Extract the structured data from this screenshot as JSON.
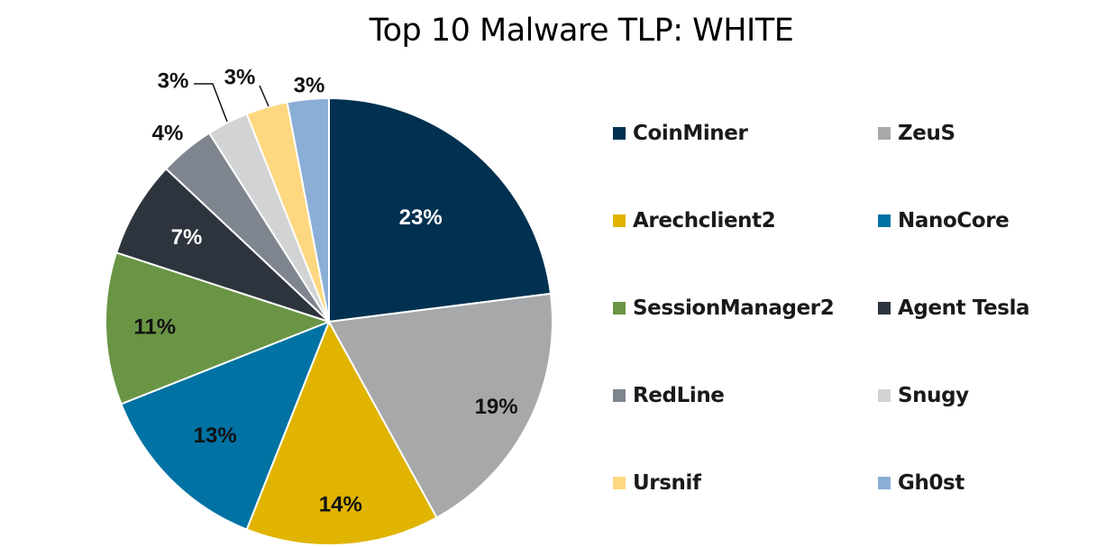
{
  "chart_data": {
    "type": "pie",
    "title": "Top 10 Malware TLP: WHITE",
    "categories": [
      "CoinMiner",
      "ZeuS",
      "Arechclient2",
      "NanoCore",
      "SessionManager2",
      "Agent Tesla",
      "RedLine",
      "Snugy",
      "Ursnif",
      "Gh0st"
    ],
    "values": [
      23,
      19,
      14,
      13,
      11,
      7,
      4,
      3,
      3,
      3
    ],
    "labels": [
      "23%",
      "19%",
      "14%",
      "13%",
      "11%",
      "7%",
      "4%",
      "3%",
      "3%",
      "3%"
    ],
    "colors": [
      "#003150",
      "#a7a8aa",
      "#e0b400",
      "#0072a3",
      "#6a9545",
      "#2d343d",
      "#7e858e",
      "#d1d3d4",
      "#fed880",
      "#8aaed5"
    ],
    "label_colors": [
      "#ffffff",
      "#111111",
      "#111111",
      "#111111",
      "#111111",
      "#ffffff",
      "#111111",
      "#111111",
      "#111111",
      "#111111"
    ],
    "legend_placement": "right"
  }
}
